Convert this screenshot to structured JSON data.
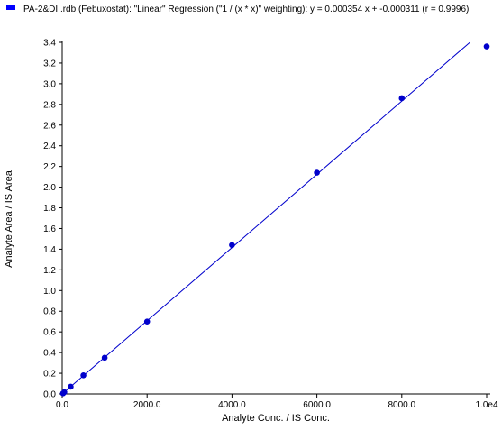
{
  "chart_data": {
    "type": "scatter",
    "legend": {
      "text": "PA-2&DI .rdb (Febuxostat): \"Linear\" Regression (\"1  / (x * x)\" weighting): y = 0.000354 x + -0.000311 (r = 0.9996)",
      "placement": "top-left",
      "color": "#0000ff"
    },
    "xlabel": "Analyte Conc. / IS Conc.",
    "ylabel": "Analyte Area / IS Area",
    "xlim": [
      0,
      10000
    ],
    "ylim": [
      0,
      3.4
    ],
    "xticks": [
      0,
      2000,
      4000,
      6000,
      8000,
      10000
    ],
    "xtick_labels": [
      "0.0",
      "2000.0",
      "4000.0",
      "6000.0",
      "8000.0",
      "1.0e4"
    ],
    "yticks": [
      0,
      0.2,
      0.4,
      0.6,
      0.8,
      1.0,
      1.2,
      1.4,
      1.6,
      1.8,
      2.0,
      2.2,
      2.4,
      2.6,
      2.8,
      3.0,
      3.2,
      3.4
    ],
    "ytick_labels": [
      "0.0",
      "0.2",
      "0.4",
      "0.6",
      "0.8",
      "1.0",
      "1.2",
      "1.4",
      "1.6",
      "1.8",
      "2.0",
      "2.2",
      "2.4",
      "2.6",
      "2.8",
      "3.0",
      "3.2",
      "3.4"
    ],
    "grid": false,
    "points": [
      {
        "x": 20,
        "y": 0.006
      },
      {
        "x": 50,
        "y": 0.017
      },
      {
        "x": 200,
        "y": 0.07
      },
      {
        "x": 500,
        "y": 0.18
      },
      {
        "x": 1000,
        "y": 0.35
      },
      {
        "x": 2000,
        "y": 0.7
      },
      {
        "x": 4000,
        "y": 1.44
      },
      {
        "x": 6000,
        "y": 2.14
      },
      {
        "x": 8000,
        "y": 2.86
      },
      {
        "x": 10000,
        "y": 3.36
      }
    ],
    "regression": {
      "slope": 0.000354,
      "intercept": -0.000311,
      "x_range": [
        0,
        9600
      ]
    },
    "point_color": "#0000cc",
    "line_color": "#0000cc"
  }
}
